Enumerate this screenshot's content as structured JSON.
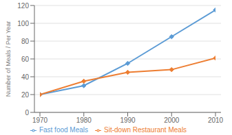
{
  "chart_data": {
    "type": "line",
    "x": [
      1970,
      1980,
      1990,
      2000,
      2010
    ],
    "xlim": [
      1970,
      2010
    ],
    "xticks": [
      1970,
      1980,
      1990,
      2000,
      2010
    ],
    "ylim": [
      0,
      120
    ],
    "yticks": [
      0,
      20,
      40,
      60,
      80,
      100,
      120
    ],
    "ylabel": "Number of Meals / Per Year",
    "grid": true,
    "legend": "bottom",
    "series": [
      {
        "name": "Fast food Meals",
        "color": "#5B9BD5",
        "marker": "diamond",
        "values": [
          20,
          30,
          55,
          85,
          115
        ]
      },
      {
        "name": "Sit-down Restaurant Meals",
        "color": "#ED7D31",
        "marker": "diamond",
        "values": [
          20,
          35,
          45,
          48,
          61
        ]
      }
    ]
  }
}
